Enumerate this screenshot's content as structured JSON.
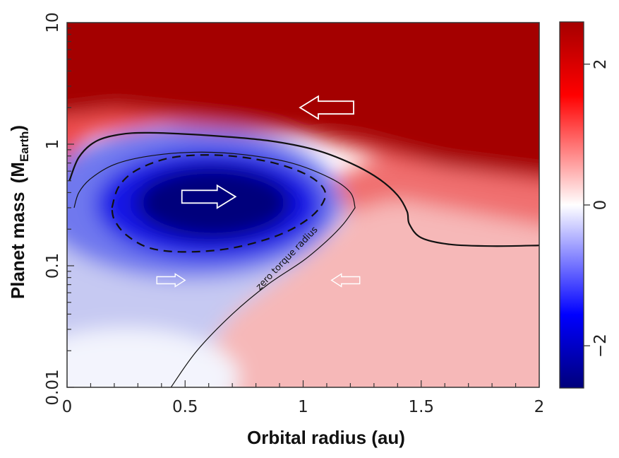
{
  "chart_data": {
    "type": "heatmap",
    "xlabel": "Orbital radius (au)",
    "ylabel": "Planet mass",
    "ylabel_paren_open": "(",
    "ylabel_unit_main": "M",
    "ylabel_unit_sub": "Earth",
    "ylabel_paren_close": ")",
    "x_scale": "linear",
    "y_scale": "log",
    "xlim": [
      0,
      2
    ],
    "ylim": [
      0.01,
      10
    ],
    "x_ticks": [
      "0",
      "0.5",
      "1",
      "1.5",
      "2"
    ],
    "y_ticks": [
      "0.01",
      "0.1",
      "1",
      "10"
    ],
    "colorbar": {
      "range": [
        -2.6,
        2.6
      ],
      "ticks": [
        "2",
        "0",
        "−2"
      ],
      "colormap": [
        "#00007a",
        "#0000ff",
        "#ffffff",
        "#ff0000",
        "#a50000"
      ]
    },
    "contours": {
      "zero_torque": {
        "label": "zero torque radius",
        "lower_branch": [
          [
            0.44,
            0.01
          ],
          [
            0.55,
            0.02
          ],
          [
            0.7,
            0.04
          ],
          [
            0.85,
            0.07
          ],
          [
            1.0,
            0.11
          ],
          [
            1.1,
            0.16
          ],
          [
            1.17,
            0.22
          ],
          [
            1.22,
            0.3
          ]
        ],
        "loop": [
          [
            1.22,
            0.3
          ],
          [
            1.2,
            0.4
          ],
          [
            1.12,
            0.52
          ],
          [
            0.95,
            0.7
          ],
          [
            0.75,
            0.82
          ],
          [
            0.55,
            0.86
          ],
          [
            0.35,
            0.8
          ],
          [
            0.2,
            0.68
          ],
          [
            0.1,
            0.52
          ],
          [
            0.05,
            0.4
          ],
          [
            0.03,
            0.3
          ]
        ]
      },
      "outer_level": [
        [
          0.01,
          0.5
        ],
        [
          0.05,
          0.78
        ],
        [
          0.12,
          1.05
        ],
        [
          0.22,
          1.2
        ],
        [
          0.35,
          1.24
        ],
        [
          0.6,
          1.18
        ],
        [
          0.85,
          1.07
        ],
        [
          1.05,
          0.9
        ],
        [
          1.2,
          0.7
        ],
        [
          1.32,
          0.52
        ],
        [
          1.4,
          0.38
        ],
        [
          1.44,
          0.28
        ],
        [
          1.45,
          0.22
        ],
        [
          1.5,
          0.17
        ],
        [
          1.62,
          0.15
        ],
        [
          1.8,
          0.145
        ],
        [
          2.0,
          0.147
        ]
      ],
      "negative_level": [
        [
          0.19,
          0.3
        ],
        [
          0.22,
          0.45
        ],
        [
          0.3,
          0.62
        ],
        [
          0.45,
          0.78
        ],
        [
          0.65,
          0.81
        ],
        [
          0.85,
          0.72
        ],
        [
          1.0,
          0.58
        ],
        [
          1.08,
          0.45
        ],
        [
          1.09,
          0.35
        ],
        [
          1.03,
          0.25
        ],
        [
          0.9,
          0.18
        ],
        [
          0.7,
          0.14
        ],
        [
          0.5,
          0.13
        ],
        [
          0.35,
          0.14
        ],
        [
          0.25,
          0.18
        ],
        [
          0.2,
          0.24
        ],
        [
          0.19,
          0.3
        ]
      ]
    },
    "arrows": [
      {
        "x": 1.1,
        "y": 2.0,
        "direction": "left",
        "size": "large"
      },
      {
        "x": 0.6,
        "y": 0.37,
        "direction": "right",
        "size": "large"
      },
      {
        "x": 0.44,
        "y": 0.076,
        "direction": "right",
        "size": "small"
      },
      {
        "x": 1.18,
        "y": 0.076,
        "direction": "left",
        "size": "small"
      }
    ],
    "grid": false,
    "legend": "colorbar-right"
  }
}
